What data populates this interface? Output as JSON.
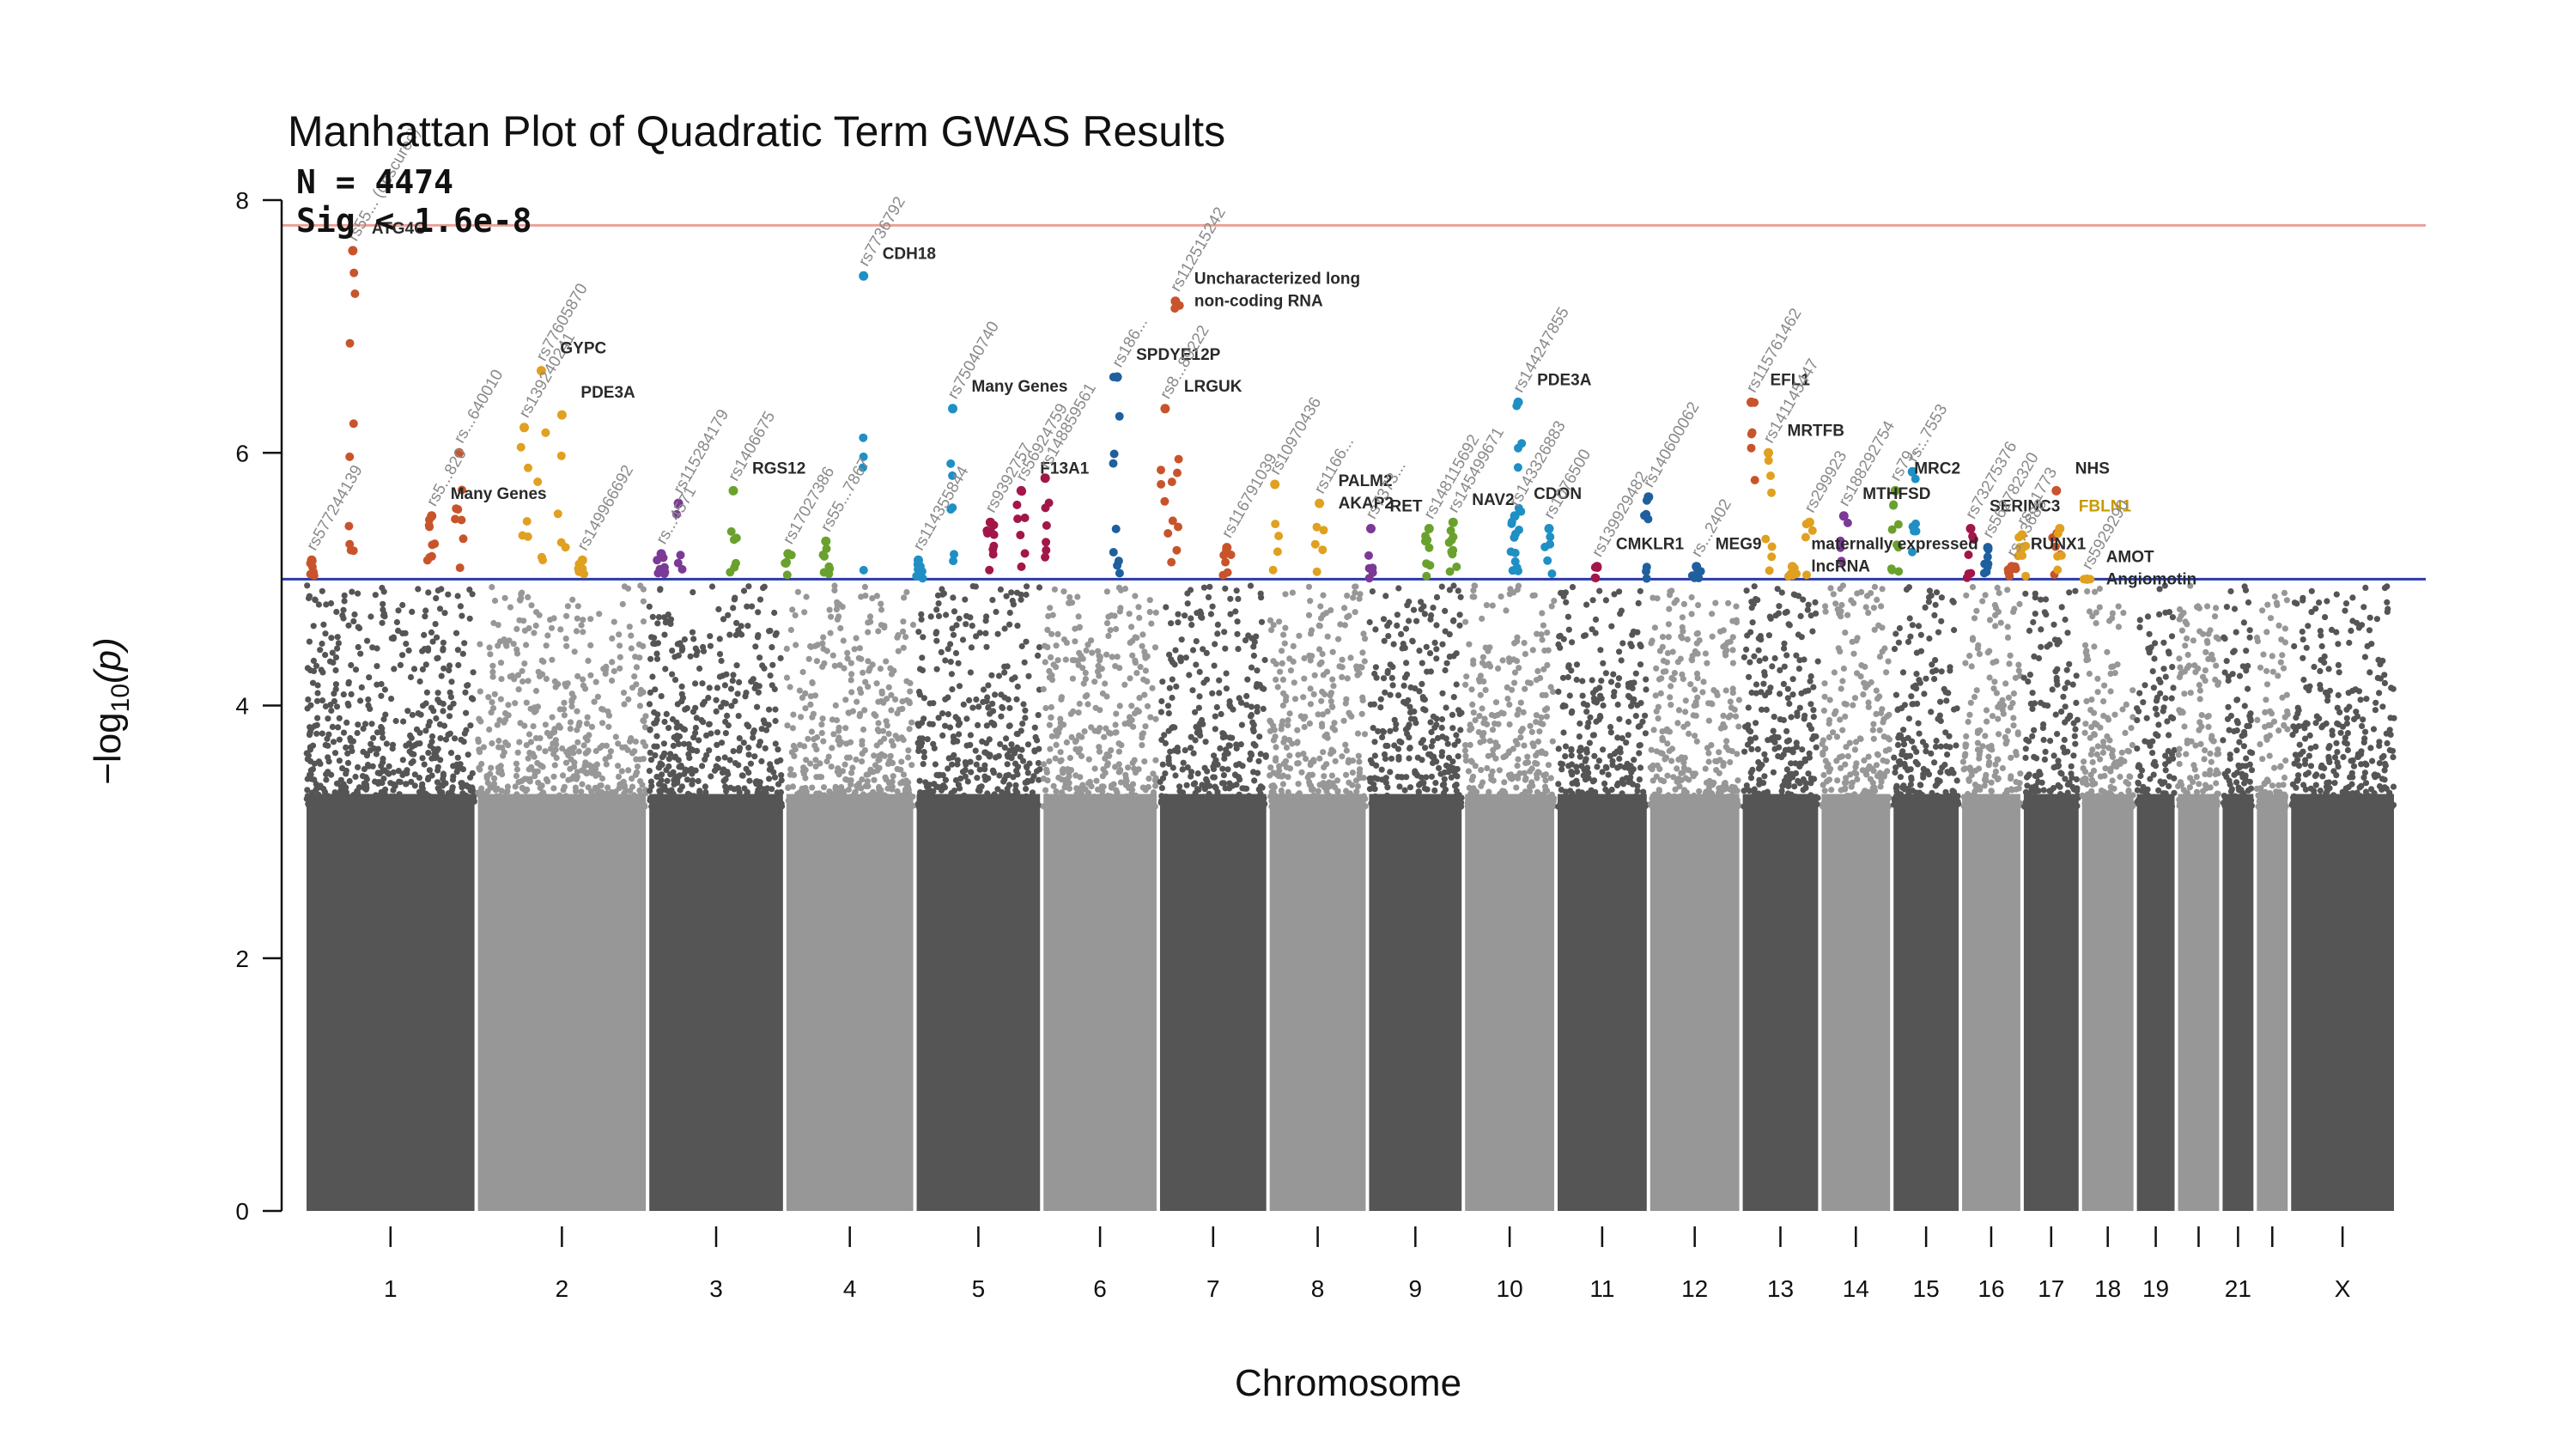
{
  "chart_data": {
    "type": "scatter",
    "title": "Manhattan Plot of Quadratic Term GWAS Results",
    "annotations": {
      "n_text": "N = 4474",
      "sig_text": "Sig < 1.6e-8"
    },
    "xlabel": "Chromosome",
    "ylabel_prefix": "−log",
    "ylabel_sub": "10",
    "ylabel_suffix": "(p)",
    "ylim": [
      0,
      8
    ],
    "yticks": [
      0,
      2,
      4,
      6,
      8
    ],
    "genome_wide_line": 7.8,
    "suggestive_line": 5.0,
    "line_colors": {
      "genome_wide": "#e8a297",
      "suggestive": "#2b3aa8"
    },
    "bg_colors": [
      "#555555",
      "#979797"
    ],
    "grid": false,
    "legend": "none",
    "chromosomes": [
      {
        "label": "1",
        "start": 0,
        "end": 250
      },
      {
        "label": "2",
        "start": 250,
        "end": 500
      },
      {
        "label": "3",
        "start": 500,
        "end": 700
      },
      {
        "label": "4",
        "start": 700,
        "end": 890
      },
      {
        "label": "5",
        "start": 890,
        "end": 1075
      },
      {
        "label": "6",
        "start": 1075,
        "end": 1245
      },
      {
        "label": "7",
        "start": 1245,
        "end": 1405
      },
      {
        "label": "8",
        "start": 1405,
        "end": 1550
      },
      {
        "label": "9",
        "start": 1550,
        "end": 1690
      },
      {
        "label": "10",
        "start": 1690,
        "end": 1825
      },
      {
        "label": "11",
        "start": 1825,
        "end": 1960
      },
      {
        "label": "12",
        "start": 1960,
        "end": 2095
      },
      {
        "label": "13",
        "start": 2095,
        "end": 2210
      },
      {
        "label": "14",
        "start": 2210,
        "end": 2315
      },
      {
        "label": "15",
        "start": 2315,
        "end": 2415
      },
      {
        "label": "16",
        "start": 2415,
        "end": 2505
      },
      {
        "label": "17",
        "start": 2505,
        "end": 2590
      },
      {
        "label": "18",
        "start": 2590,
        "end": 2670
      },
      {
        "label": "19",
        "start": 2670,
        "end": 2730
      },
      {
        "label": "",
        "start": 2730,
        "end": 2795
      },
      {
        "label": "21",
        "start": 2795,
        "end": 2845
      },
      {
        "label": "",
        "start": 2845,
        "end": 2895
      },
      {
        "label": "X",
        "start": 2895,
        "end": 3050
      }
    ],
    "hits": [
      {
        "rsid": "rs577244139",
        "gene": "",
        "x": 10,
        "y": 5.15,
        "color": "#c8542c",
        "gene_color": "#2a2a2a"
      },
      {
        "rsid": "rs55... (obscured)",
        "gene": "ATG4C",
        "x": 70,
        "y": 7.6,
        "color": "#c8542c",
        "gene_color": "#2a2a2a"
      },
      {
        "rsid": "rs5...820",
        "gene": "Many Genes",
        "x": 185,
        "y": 5.5,
        "color": "#c8542c",
        "gene_color": "#2a2a2a"
      },
      {
        "rsid": "rs...640010",
        "gene": "",
        "x": 225,
        "y": 6.0,
        "color": "#c8542c",
        "gene_color": "#2a2a2a"
      },
      {
        "rsid": "rs139240241",
        "gene": "",
        "x": 320,
        "y": 6.2,
        "color": "#e0a020",
        "gene_color": "#2a2a2a"
      },
      {
        "rsid": "rs77605870",
        "gene": "GYPC",
        "x": 345,
        "y": 6.65,
        "color": "#e0a020",
        "gene_color": "#2a2a2a"
      },
      {
        "rsid": "",
        "gene": "PDE3A",
        "x": 375,
        "y": 6.3,
        "color": "#e0a020",
        "gene_color": "#2a2a2a"
      },
      {
        "rsid": "rs149966692",
        "gene": "",
        "x": 405,
        "y": 5.15,
        "color": "#e0a020",
        "gene_color": "#2a2a2a"
      },
      {
        "rsid": "rs...4571",
        "gene": "",
        "x": 520,
        "y": 5.2,
        "color": "#7b3a96",
        "gene_color": "#2a2a2a"
      },
      {
        "rsid": "rs115284179",
        "gene": "",
        "x": 545,
        "y": 5.6,
        "color": "#7b3a96",
        "gene_color": "#2a2a2a"
      },
      {
        "rsid": "rs1406675",
        "gene": "RGS12",
        "x": 625,
        "y": 5.7,
        "color": "#6aa12e",
        "gene_color": "#2a2a2a"
      },
      {
        "rsid": "rs17027386",
        "gene": "",
        "x": 705,
        "y": 5.2,
        "color": "#6aa12e",
        "gene_color": "#2a2a2a"
      },
      {
        "rsid": "rs55...7867",
        "gene": "",
        "x": 760,
        "y": 5.3,
        "color": "#6aa12e",
        "gene_color": "#2a2a2a"
      },
      {
        "rsid": "rs7736792",
        "gene": "CDH18",
        "x": 815,
        "y": 7.4,
        "color": "#1f8fc4",
        "gene_color": "#2a2a2a"
      },
      {
        "rsid": "rs114355844",
        "gene": "",
        "x": 895,
        "y": 5.15,
        "color": "#1f8fc4",
        "gene_color": "#2a2a2a"
      },
      {
        "rsid": "rs75040740",
        "gene": "Many Genes",
        "x": 945,
        "y": 6.35,
        "color": "#1f8fc4",
        "gene_color": "#2a2a2a"
      },
      {
        "rsid": "rs9392757",
        "gene": "",
        "x": 1000,
        "y": 5.45,
        "color": "#a2164a",
        "gene_color": "#2a2a2a"
      },
      {
        "rsid": "rs56924759",
        "gene": "F13A1",
        "x": 1045,
        "y": 5.7,
        "color": "#a2164a",
        "gene_color": "#2a2a2a"
      },
      {
        "rsid": "rs148859561",
        "gene": "",
        "x": 1080,
        "y": 5.8,
        "color": "#a2164a",
        "gene_color": "#2a2a2a"
      },
      {
        "rsid": "rs186...",
        "gene": "SPDYE12P",
        "x": 1185,
        "y": 6.6,
        "color": "#1f5f9e",
        "gene_color": "#2a2a2a"
      },
      {
        "rsid": "rs112515242",
        "gene": "Uncharacterized long non-coding RNA",
        "x": 1270,
        "y": 7.2,
        "color": "#c8542c",
        "gene_color": "#2a2a2a"
      },
      {
        "rsid": "rs8...89222",
        "gene": "LRGUK",
        "x": 1255,
        "y": 6.35,
        "color": "#c8542c",
        "gene_color": "#2a2a2a"
      },
      {
        "rsid": "rs116791039",
        "gene": "",
        "x": 1345,
        "y": 5.25,
        "color": "#c8542c",
        "gene_color": "#2a2a2a"
      },
      {
        "rsid": "rs10970436",
        "gene": "",
        "x": 1415,
        "y": 5.75,
        "color": "#e0a020",
        "gene_color": "#2a2a2a"
      },
      {
        "rsid": "rs1166...",
        "gene": "PALM2 AKAP2",
        "x": 1480,
        "y": 5.6,
        "color": "#e0a020",
        "gene_color": "#2a2a2a"
      },
      {
        "rsid": "rs7373...",
        "gene": "RET",
        "x": 1555,
        "y": 5.4,
        "color": "#7b3a96",
        "gene_color": "#2a2a2a"
      },
      {
        "rsid": "rs148115692",
        "gene": "",
        "x": 1640,
        "y": 5.4,
        "color": "#6aa12e",
        "gene_color": "#2a2a2a"
      },
      {
        "rsid": "rs145499671",
        "gene": "NAV2",
        "x": 1675,
        "y": 5.45,
        "color": "#6aa12e",
        "gene_color": "#2a2a2a"
      },
      {
        "rsid": "rs144247855",
        "gene": "PDE3A",
        "x": 1770,
        "y": 6.4,
        "color": "#1f8fc4",
        "gene_color": "#2a2a2a"
      },
      {
        "rsid": "rs143326883",
        "gene": "CDON",
        "x": 1765,
        "y": 5.5,
        "color": "#1f8fc4",
        "gene_color": "#2a2a2a"
      },
      {
        "rsid": "rs1076500",
        "gene": "",
        "x": 1815,
        "y": 5.4,
        "color": "#1f8fc4",
        "gene_color": "#2a2a2a"
      },
      {
        "rsid": "rs139929482",
        "gene": "CMKLR1",
        "x": 1885,
        "y": 5.1,
        "color": "#a2164a",
        "gene_color": "#2a2a2a"
      },
      {
        "rsid": "rs140600062",
        "gene": "",
        "x": 1960,
        "y": 5.65,
        "color": "#1f5f9e",
        "gene_color": "#2a2a2a"
      },
      {
        "rsid": "rs...2402",
        "gene": "MEG9",
        "x": 2030,
        "y": 5.1,
        "color": "#1f5f9e",
        "gene_color": "#2a2a2a"
      },
      {
        "rsid": "rs115761462",
        "gene": "EFL1",
        "x": 2110,
        "y": 6.4,
        "color": "#c8542c",
        "gene_color": "#2a2a2a"
      },
      {
        "rsid": "rs141145447",
        "gene": "MRTFB",
        "x": 2135,
        "y": 6.0,
        "color": "#e0a020",
        "gene_color": "#2a2a2a"
      },
      {
        "rsid": "",
        "gene": "maternally expressed lncRNA",
        "x": 2170,
        "y": 5.1,
        "color": "#e0a020",
        "gene_color": "#2a2a2a"
      },
      {
        "rsid": "rs299923",
        "gene": "",
        "x": 2195,
        "y": 5.45,
        "color": "#e0a020",
        "gene_color": "#2a2a2a"
      },
      {
        "rsid": "rs188292754",
        "gene": "MTHFSD",
        "x": 2245,
        "y": 5.5,
        "color": "#7b3a96",
        "gene_color": "#2a2a2a"
      },
      {
        "rsid": "rs79...",
        "gene": "MRC2",
        "x": 2320,
        "y": 5.7,
        "color": "#6aa12e",
        "gene_color": "#2a2a2a"
      },
      {
        "rsid": "rs...7553",
        "gene": "",
        "x": 2345,
        "y": 5.85,
        "color": "#1f8fc4",
        "gene_color": "#2a2a2a"
      },
      {
        "rsid": "rs73275376",
        "gene": "SERINC3",
        "x": 2430,
        "y": 5.4,
        "color": "#a2164a",
        "gene_color": "#2a2a2a"
      },
      {
        "rsid": "rs562782320",
        "gene": "",
        "x": 2455,
        "y": 5.25,
        "color": "#1f5f9e",
        "gene_color": "#2a2a2a"
      },
      {
        "rsid": "rs...3688",
        "gene": "RUNX1",
        "x": 2490,
        "y": 5.1,
        "color": "#c8542c",
        "gene_color": "#2a2a2a"
      },
      {
        "rsid": "rs...1773",
        "gene": "",
        "x": 2505,
        "y": 5.35,
        "color": "#e0a020",
        "gene_color": "#2a2a2a"
      },
      {
        "rsid": "",
        "gene": "NHS",
        "x": 2555,
        "y": 5.7,
        "color": "#c8542c",
        "gene_color": "#2a2a2a"
      },
      {
        "rsid": "",
        "gene": "FBLN1",
        "x": 2560,
        "y": 5.4,
        "color": "#e0a020",
        "gene_color": "#c79a00"
      },
      {
        "rsid": "rs5929290",
        "gene": "AMOT Angiomotin",
        "x": 2600,
        "y": 5.0,
        "color": "#e0a020",
        "gene_color": "#2a2a2a"
      }
    ]
  }
}
